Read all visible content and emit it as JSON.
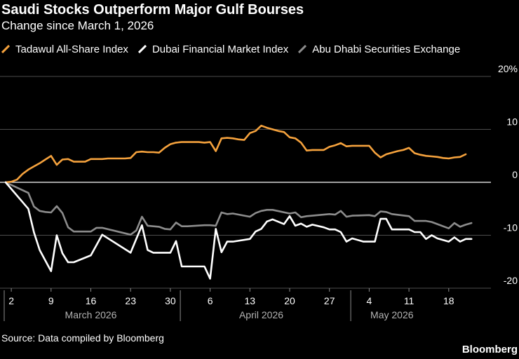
{
  "header": {
    "title": "Saudi Stocks Outperform Major Gulf Bourses",
    "subtitle": "Change since March 1, 2026"
  },
  "footer": {
    "source": "Source: Data compiled by Bloomberg",
    "brand": "Bloomberg"
  },
  "chart_data": {
    "type": "line",
    "title": "Saudi Stocks Outperform Major Gulf Bourses",
    "subtitle": "Change since March 1, 2026",
    "xlabel": "",
    "ylabel": "",
    "ylim": [
      -20,
      20
    ],
    "y_ticks": [
      {
        "value": 20,
        "label": "20%"
      },
      {
        "value": 10,
        "label": "10"
      },
      {
        "value": 0,
        "label": "0"
      },
      {
        "value": -10,
        "label": "-10"
      },
      {
        "value": -20,
        "label": "-20"
      }
    ],
    "x_ticks": [
      {
        "date": "2026-03-02",
        "label": "2"
      },
      {
        "date": "2026-03-09",
        "label": "9"
      },
      {
        "date": "2026-03-16",
        "label": "16"
      },
      {
        "date": "2026-03-23",
        "label": "23"
      },
      {
        "date": "2026-03-30",
        "label": "30"
      },
      {
        "date": "2026-04-06",
        "label": "6"
      },
      {
        "date": "2026-04-13",
        "label": "13"
      },
      {
        "date": "2026-04-20",
        "label": "20"
      },
      {
        "date": "2026-04-27",
        "label": "27"
      },
      {
        "date": "2026-05-04",
        "label": "4"
      },
      {
        "date": "2026-05-11",
        "label": "11"
      },
      {
        "date": "2026-05-18",
        "label": "18"
      }
    ],
    "month_labels": [
      {
        "label": "March 2026",
        "date": "2026-03-16"
      },
      {
        "label": "April 2026",
        "date": "2026-04-15"
      },
      {
        "label": "May 2026",
        "date": "2026-05-08"
      }
    ],
    "month_separators": [
      "2026-03-01",
      "2026-04-01",
      "2026-05-01"
    ],
    "x_range": [
      "2026-02-28",
      "2026-05-27"
    ],
    "grid": true,
    "legend_position": "top-left",
    "series": [
      {
        "name": "Tadawul All-Share Index",
        "color": "#f5a23d",
        "points": [
          [
            "2026-03-01",
            0
          ],
          [
            "2026-03-02",
            0.1
          ],
          [
            "2026-03-03",
            0.5
          ],
          [
            "2026-03-04",
            1.6
          ],
          [
            "2026-03-05",
            2.4
          ],
          [
            "2026-03-06",
            3.0
          ],
          [
            "2026-03-07",
            3.6
          ],
          [
            "2026-03-08",
            4.3
          ],
          [
            "2026-03-09",
            5.0
          ],
          [
            "2026-03-10",
            3.3
          ],
          [
            "2026-03-11",
            4.3
          ],
          [
            "2026-03-12",
            4.4
          ],
          [
            "2026-03-13",
            3.9
          ],
          [
            "2026-03-14",
            3.9
          ],
          [
            "2026-03-15",
            3.9
          ],
          [
            "2026-03-16",
            4.4
          ],
          [
            "2026-03-17",
            4.4
          ],
          [
            "2026-03-18",
            4.4
          ],
          [
            "2026-03-19",
            4.5
          ],
          [
            "2026-03-20",
            4.5
          ],
          [
            "2026-03-21",
            4.5
          ],
          [
            "2026-03-22",
            4.5
          ],
          [
            "2026-03-23",
            4.6
          ],
          [
            "2026-03-24",
            5.7
          ],
          [
            "2026-03-25",
            5.8
          ],
          [
            "2026-03-26",
            5.7
          ],
          [
            "2026-03-27",
            5.7
          ],
          [
            "2026-03-28",
            5.6
          ],
          [
            "2026-03-29",
            6.5
          ],
          [
            "2026-03-30",
            7.2
          ],
          [
            "2026-03-31",
            7.5
          ],
          [
            "2026-04-01",
            7.6
          ],
          [
            "2026-04-02",
            7.6
          ],
          [
            "2026-04-03",
            7.6
          ],
          [
            "2026-04-04",
            7.6
          ],
          [
            "2026-04-05",
            7.5
          ],
          [
            "2026-04-06",
            7.6
          ],
          [
            "2026-04-07",
            5.9
          ],
          [
            "2026-04-08",
            8.3
          ],
          [
            "2026-04-09",
            8.4
          ],
          [
            "2026-04-10",
            8.3
          ],
          [
            "2026-04-11",
            8.1
          ],
          [
            "2026-04-12",
            8.0
          ],
          [
            "2026-04-13",
            9.3
          ],
          [
            "2026-04-14",
            9.7
          ],
          [
            "2026-04-15",
            10.7
          ],
          [
            "2026-04-16",
            10.3
          ],
          [
            "2026-04-17",
            10.0
          ],
          [
            "2026-04-18",
            9.7
          ],
          [
            "2026-04-19",
            9.5
          ],
          [
            "2026-04-20",
            8.5
          ],
          [
            "2026-04-21",
            8.3
          ],
          [
            "2026-04-22",
            7.5
          ],
          [
            "2026-04-23",
            6.0
          ],
          [
            "2026-04-24",
            6.1
          ],
          [
            "2026-04-25",
            6.1
          ],
          [
            "2026-04-26",
            6.1
          ],
          [
            "2026-04-27",
            6.7
          ],
          [
            "2026-04-28",
            7.0
          ],
          [
            "2026-04-29",
            7.4
          ],
          [
            "2026-04-30",
            6.8
          ],
          [
            "2026-05-01",
            6.9
          ],
          [
            "2026-05-02",
            6.9
          ],
          [
            "2026-05-03",
            6.9
          ],
          [
            "2026-05-04",
            6.9
          ],
          [
            "2026-05-05",
            5.6
          ],
          [
            "2026-05-06",
            4.7
          ],
          [
            "2026-05-07",
            5.3
          ],
          [
            "2026-05-08",
            5.6
          ],
          [
            "2026-05-09",
            5.9
          ],
          [
            "2026-05-10",
            6.1
          ],
          [
            "2026-05-11",
            6.5
          ],
          [
            "2026-05-12",
            5.5
          ],
          [
            "2026-05-13",
            5.2
          ],
          [
            "2026-05-14",
            5.0
          ],
          [
            "2026-05-15",
            4.9
          ],
          [
            "2026-05-16",
            4.8
          ],
          [
            "2026-05-17",
            4.6
          ],
          [
            "2026-05-18",
            4.5
          ],
          [
            "2026-05-19",
            4.7
          ],
          [
            "2026-05-20",
            4.8
          ],
          [
            "2026-05-21",
            5.3
          ]
        ]
      },
      {
        "name": "Dubai Financial Market Index",
        "color": "#ffffff",
        "points": [
          [
            "2026-03-01",
            0
          ],
          [
            "2026-03-05",
            -5.0
          ],
          [
            "2026-03-06",
            -9.5
          ],
          [
            "2026-03-07",
            -12.8
          ],
          [
            "2026-03-09",
            -16.8
          ],
          [
            "2026-03-10",
            -10.0
          ],
          [
            "2026-03-11",
            -13.4
          ],
          [
            "2026-03-12",
            -15.1
          ],
          [
            "2026-03-13",
            -15.1
          ],
          [
            "2026-03-16",
            -13.8
          ],
          [
            "2026-03-18",
            -9.9
          ],
          [
            "2026-03-23",
            -13.3
          ],
          [
            "2026-03-25",
            -8.1
          ],
          [
            "2026-03-26",
            -12.8
          ],
          [
            "2026-03-27",
            -13.3
          ],
          [
            "2026-03-30",
            -13.3
          ],
          [
            "2026-03-31",
            -11.1
          ],
          [
            "2026-04-01",
            -15.9
          ],
          [
            "2026-04-05",
            -15.9
          ],
          [
            "2026-04-06",
            -18.2
          ],
          [
            "2026-04-07",
            -8.8
          ],
          [
            "2026-04-08",
            -13.2
          ],
          [
            "2026-04-09",
            -11.2
          ],
          [
            "2026-04-10",
            -11.2
          ],
          [
            "2026-04-13",
            -10.7
          ],
          [
            "2026-04-14",
            -9.3
          ],
          [
            "2026-04-15",
            -8.8
          ],
          [
            "2026-04-16",
            -7.4
          ],
          [
            "2026-04-17",
            -7.0
          ],
          [
            "2026-04-19",
            -7.9
          ],
          [
            "2026-04-20",
            -6.4
          ],
          [
            "2026-04-21",
            -8.2
          ],
          [
            "2026-04-22",
            -7.8
          ],
          [
            "2026-04-23",
            -8.4
          ],
          [
            "2026-04-24",
            -8.0
          ],
          [
            "2026-04-26",
            -8.5
          ],
          [
            "2026-04-27",
            -8.9
          ],
          [
            "2026-04-28",
            -8.9
          ],
          [
            "2026-04-29",
            -9.4
          ],
          [
            "2026-04-30",
            -11.2
          ],
          [
            "2026-05-01",
            -10.6
          ],
          [
            "2026-05-03",
            -11.2
          ],
          [
            "2026-05-05",
            -11.2
          ],
          [
            "2026-05-06",
            -6.9
          ],
          [
            "2026-05-07",
            -6.9
          ],
          [
            "2026-05-08",
            -8.9
          ],
          [
            "2026-05-09",
            -8.9
          ],
          [
            "2026-05-11",
            -8.9
          ],
          [
            "2026-05-12",
            -9.4
          ],
          [
            "2026-05-13",
            -9.4
          ],
          [
            "2026-05-14",
            -10.7
          ],
          [
            "2026-05-15",
            -10.0
          ],
          [
            "2026-05-16",
            -10.6
          ],
          [
            "2026-05-18",
            -11.2
          ],
          [
            "2026-05-19",
            -10.4
          ],
          [
            "2026-05-20",
            -11.2
          ],
          [
            "2026-05-21",
            -10.7
          ],
          [
            "2026-05-22",
            -10.7
          ]
        ]
      },
      {
        "name": "Abu Dhabi Securities Exchange",
        "color": "#8c8c8c",
        "points": [
          [
            "2026-03-01",
            0
          ],
          [
            "2026-03-04",
            -1.5
          ],
          [
            "2026-03-05",
            -2.0
          ],
          [
            "2026-03-06",
            -4.6
          ],
          [
            "2026-03-07",
            -5.4
          ],
          [
            "2026-03-08",
            -5.6
          ],
          [
            "2026-03-09",
            -5.7
          ],
          [
            "2026-03-10",
            -4.5
          ],
          [
            "2026-03-11",
            -5.8
          ],
          [
            "2026-03-12",
            -8.5
          ],
          [
            "2026-03-13",
            -9.3
          ],
          [
            "2026-03-16",
            -9.3
          ],
          [
            "2026-03-17",
            -8.6
          ],
          [
            "2026-03-18",
            -8.6
          ],
          [
            "2026-03-23",
            -9.9
          ],
          [
            "2026-03-24",
            -9.1
          ],
          [
            "2026-03-25",
            -6.5
          ],
          [
            "2026-03-26",
            -8.2
          ],
          [
            "2026-03-28",
            -8.4
          ],
          [
            "2026-03-29",
            -8.8
          ],
          [
            "2026-03-30",
            -8.9
          ],
          [
            "2026-03-31",
            -7.6
          ],
          [
            "2026-04-01",
            -8.3
          ],
          [
            "2026-04-02",
            -8.3
          ],
          [
            "2026-04-05",
            -8.1
          ],
          [
            "2026-04-06",
            -8.1
          ],
          [
            "2026-04-07",
            -8.2
          ],
          [
            "2026-04-08",
            -5.7
          ],
          [
            "2026-04-09",
            -6.0
          ],
          [
            "2026-04-10",
            -5.9
          ],
          [
            "2026-04-13",
            -6.5
          ],
          [
            "2026-04-14",
            -5.8
          ],
          [
            "2026-04-15",
            -5.4
          ],
          [
            "2026-04-16",
            -5.2
          ],
          [
            "2026-04-17",
            -5.2
          ],
          [
            "2026-04-20",
            -5.9
          ],
          [
            "2026-04-21",
            -5.7
          ],
          [
            "2026-04-22",
            -6.6
          ],
          [
            "2026-04-23",
            -6.4
          ],
          [
            "2026-04-27",
            -6.0
          ],
          [
            "2026-04-28",
            -6.1
          ],
          [
            "2026-04-29",
            -5.4
          ],
          [
            "2026-04-30",
            -6.5
          ],
          [
            "2026-05-01",
            -6.3
          ],
          [
            "2026-05-04",
            -6.2
          ],
          [
            "2026-05-05",
            -6.4
          ],
          [
            "2026-05-06",
            -5.5
          ],
          [
            "2026-05-07",
            -5.6
          ],
          [
            "2026-05-08",
            -6.0
          ],
          [
            "2026-05-11",
            -6.4
          ],
          [
            "2026-05-12",
            -7.3
          ],
          [
            "2026-05-14",
            -7.3
          ],
          [
            "2026-05-15",
            -7.5
          ],
          [
            "2026-05-16",
            -7.9
          ],
          [
            "2026-05-18",
            -8.7
          ],
          [
            "2026-05-19",
            -7.7
          ],
          [
            "2026-05-20",
            -8.4
          ],
          [
            "2026-05-21",
            -8.0
          ],
          [
            "2026-05-22",
            -7.7
          ]
        ]
      }
    ]
  }
}
